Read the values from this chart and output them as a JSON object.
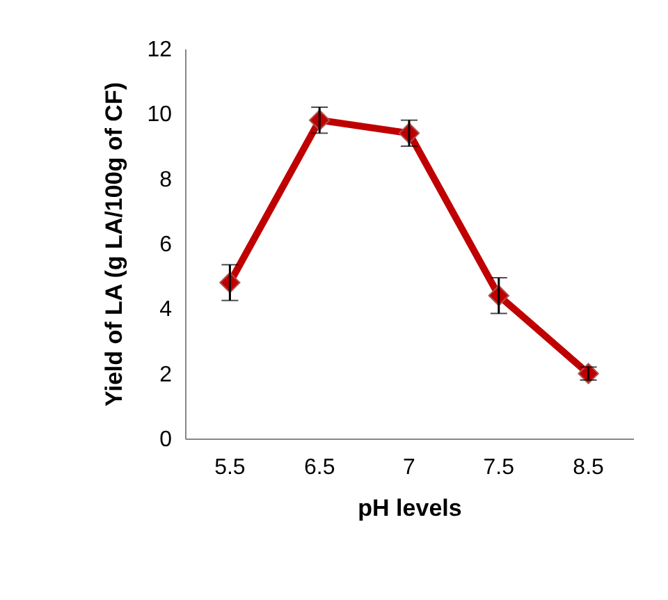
{
  "chart_data": {
    "type": "line",
    "xlabel": "pH levels",
    "ylabel": "Yield of LA (g LA/100g of CF)",
    "categories": [
      "5.5",
      "6.5",
      "7",
      "7.5",
      "8.5"
    ],
    "series": [
      {
        "color": "#c00000",
        "values": [
          4.8,
          9.8,
          9.4,
          4.4,
          2.0
        ],
        "errors": [
          0.55,
          0.4,
          0.4,
          0.55,
          0.2
        ]
      }
    ],
    "ylim": [
      0,
      12
    ],
    "yticks": [
      0,
      2,
      4,
      6,
      8,
      10,
      12
    ],
    "grid": false,
    "marker": "diamond",
    "line_style": "solid"
  }
}
